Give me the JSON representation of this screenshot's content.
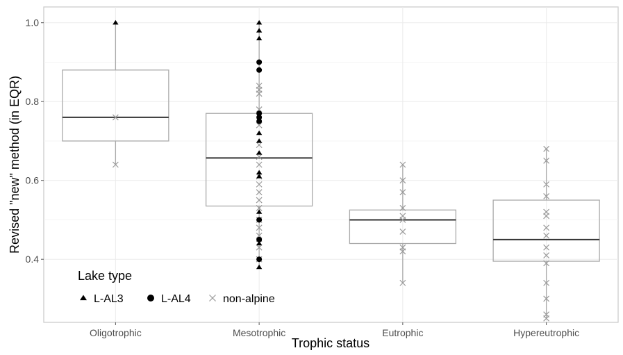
{
  "chart_data": {
    "type": "box",
    "title": "",
    "xlabel": "Trophic status",
    "ylabel": "Revised \"new\" method (in EQR)",
    "categories": [
      "Oligotrophic",
      "Mesotrophic",
      "Eutrophic",
      "Hypereutrophic"
    ],
    "ylim": [
      0.24,
      1.04
    ],
    "yticks": [
      0.4,
      0.6,
      0.8,
      1.0
    ],
    "ytick_labels": [
      "0.4",
      "0.6",
      "0.8",
      "1.0"
    ],
    "grid": true,
    "legend": {
      "title": "Lake type",
      "position": "bottom-left",
      "entries": [
        {
          "label": "L-AL3",
          "shape": "triangle",
          "color": "#000000"
        },
        {
          "label": "L-AL4",
          "shape": "circle",
          "color": "#000000"
        },
        {
          "label": "non-alpine",
          "shape": "cross",
          "color": "#999999"
        }
      ]
    },
    "boxes": [
      {
        "category": "Oligotrophic",
        "q1": 0.7,
        "median": 0.76,
        "q3": 0.88,
        "whisker_low": 0.64,
        "whisker_high": 1.0
      },
      {
        "category": "Mesotrophic",
        "q1": 0.535,
        "median": 0.657,
        "q3": 0.77,
        "whisker_low": 0.38,
        "whisker_high": 1.0
      },
      {
        "category": "Eutrophic",
        "q1": 0.44,
        "median": 0.5,
        "q3": 0.525,
        "whisker_low": 0.34,
        "whisker_high": 0.64
      },
      {
        "category": "Hypereutrophic",
        "q1": 0.395,
        "median": 0.45,
        "q3": 0.55,
        "whisker_low": 0.25,
        "whisker_high": 0.68
      }
    ],
    "points": {
      "L-AL3": [
        {
          "category": "Oligotrophic",
          "y": 1.0
        },
        {
          "category": "Mesotrophic",
          "y": 1.0
        },
        {
          "category": "Mesotrophic",
          "y": 0.98
        },
        {
          "category": "Mesotrophic",
          "y": 0.96
        },
        {
          "category": "Mesotrophic",
          "y": 0.72
        },
        {
          "category": "Mesotrophic",
          "y": 0.7
        },
        {
          "category": "Mesotrophic",
          "y": 0.67
        },
        {
          "category": "Mesotrophic",
          "y": 0.62
        },
        {
          "category": "Mesotrophic",
          "y": 0.61
        },
        {
          "category": "Mesotrophic",
          "y": 0.52
        },
        {
          "category": "Mesotrophic",
          "y": 0.45
        },
        {
          "category": "Mesotrophic",
          "y": 0.44
        },
        {
          "category": "Mesotrophic",
          "y": 0.38
        }
      ],
      "L-AL4": [
        {
          "category": "Mesotrophic",
          "y": 0.9
        },
        {
          "category": "Mesotrophic",
          "y": 0.88
        },
        {
          "category": "Mesotrophic",
          "y": 0.77
        },
        {
          "category": "Mesotrophic",
          "y": 0.76
        },
        {
          "category": "Mesotrophic",
          "y": 0.75
        },
        {
          "category": "Mesotrophic",
          "y": 0.5
        },
        {
          "category": "Mesotrophic",
          "y": 0.45
        },
        {
          "category": "Mesotrophic",
          "y": 0.4
        }
      ],
      "non-alpine": [
        {
          "category": "Oligotrophic",
          "y": 0.76
        },
        {
          "category": "Oligotrophic",
          "y": 0.64
        },
        {
          "category": "Mesotrophic",
          "y": 0.84
        },
        {
          "category": "Mesotrophic",
          "y": 0.83
        },
        {
          "category": "Mesotrophic",
          "y": 0.82
        },
        {
          "category": "Mesotrophic",
          "y": 0.78
        },
        {
          "category": "Mesotrophic",
          "y": 0.74
        },
        {
          "category": "Mesotrophic",
          "y": 0.69
        },
        {
          "category": "Mesotrophic",
          "y": 0.66
        },
        {
          "category": "Mesotrophic",
          "y": 0.64
        },
        {
          "category": "Mesotrophic",
          "y": 0.61
        },
        {
          "category": "Mesotrophic",
          "y": 0.59
        },
        {
          "category": "Mesotrophic",
          "y": 0.57
        },
        {
          "category": "Mesotrophic",
          "y": 0.55
        },
        {
          "category": "Mesotrophic",
          "y": 0.53
        },
        {
          "category": "Mesotrophic",
          "y": 0.5
        },
        {
          "category": "Mesotrophic",
          "y": 0.48
        },
        {
          "category": "Mesotrophic",
          "y": 0.46
        },
        {
          "category": "Mesotrophic",
          "y": 0.43
        },
        {
          "category": "Mesotrophic",
          "y": 0.4
        },
        {
          "category": "Eutrophic",
          "y": 0.64
        },
        {
          "category": "Eutrophic",
          "y": 0.6
        },
        {
          "category": "Eutrophic",
          "y": 0.57
        },
        {
          "category": "Eutrophic",
          "y": 0.53
        },
        {
          "category": "Eutrophic",
          "y": 0.51
        },
        {
          "category": "Eutrophic",
          "y": 0.5
        },
        {
          "category": "Eutrophic",
          "y": 0.47
        },
        {
          "category": "Eutrophic",
          "y": 0.43
        },
        {
          "category": "Eutrophic",
          "y": 0.42
        },
        {
          "category": "Eutrophic",
          "y": 0.34
        },
        {
          "category": "Hypereutrophic",
          "y": 0.68
        },
        {
          "category": "Hypereutrophic",
          "y": 0.65
        },
        {
          "category": "Hypereutrophic",
          "y": 0.59
        },
        {
          "category": "Hypereutrophic",
          "y": 0.56
        },
        {
          "category": "Hypereutrophic",
          "y": 0.52
        },
        {
          "category": "Hypereutrophic",
          "y": 0.51
        },
        {
          "category": "Hypereutrophic",
          "y": 0.48
        },
        {
          "category": "Hypereutrophic",
          "y": 0.46
        },
        {
          "category": "Hypereutrophic",
          "y": 0.43
        },
        {
          "category": "Hypereutrophic",
          "y": 0.41
        },
        {
          "category": "Hypereutrophic",
          "y": 0.39
        },
        {
          "category": "Hypereutrophic",
          "y": 0.34
        },
        {
          "category": "Hypereutrophic",
          "y": 0.3
        },
        {
          "category": "Hypereutrophic",
          "y": 0.26
        },
        {
          "category": "Hypereutrophic",
          "y": 0.25
        }
      ]
    }
  }
}
